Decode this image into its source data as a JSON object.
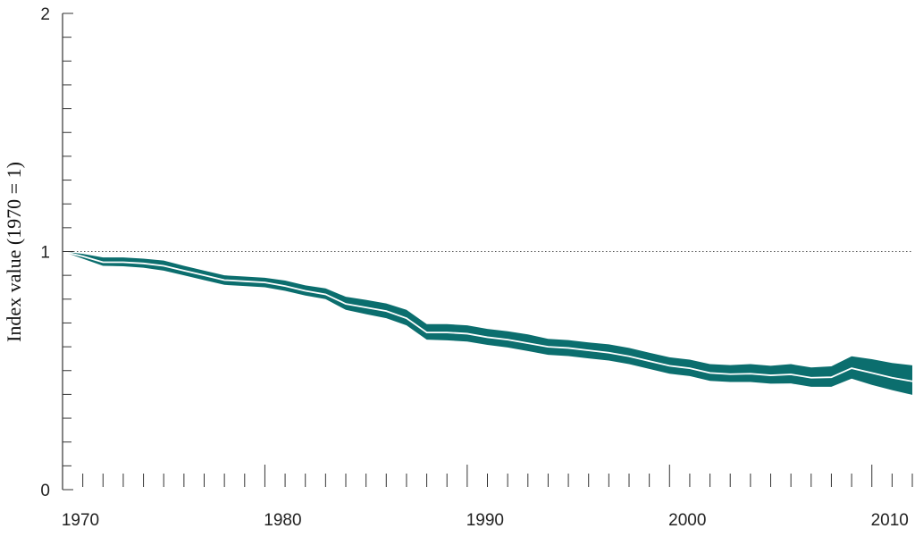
{
  "chart_data": {
    "type": "area",
    "title": "",
    "xlabel": "",
    "ylabel": "Index value (1970 = 1)",
    "xlim": [
      1970,
      2012
    ],
    "ylim": [
      0,
      2
    ],
    "x_ticks": [
      "1970",
      "1980",
      "1990",
      "2000",
      "2010"
    ],
    "y_ticks": [
      "0",
      "1",
      "2"
    ],
    "reference_line": 1,
    "grid": false,
    "colors": {
      "band": "#0b6e6e",
      "line": "#ffffff",
      "axis": "#333333",
      "reference": "#555555"
    },
    "x": [
      1970,
      1971,
      1972,
      1973,
      1974,
      1975,
      1976,
      1977,
      1978,
      1979,
      1980,
      1981,
      1982,
      1983,
      1984,
      1985,
      1986,
      1987,
      1988,
      1989,
      1990,
      1991,
      1992,
      1993,
      1994,
      1995,
      1996,
      1997,
      1998,
      1999,
      2000,
      2001,
      2002,
      2003,
      2004,
      2005,
      2006,
      2007,
      2008,
      2009,
      2010,
      2011,
      2012
    ],
    "series": [
      {
        "name": "",
        "kind": "line",
        "values": [
          1.0,
          0.98,
          0.955,
          0.955,
          0.95,
          0.94,
          0.92,
          0.9,
          0.88,
          0.875,
          0.87,
          0.855,
          0.835,
          0.82,
          0.78,
          0.765,
          0.75,
          0.72,
          0.66,
          0.66,
          0.655,
          0.64,
          0.63,
          0.615,
          0.6,
          0.595,
          0.585,
          0.575,
          0.56,
          0.54,
          0.52,
          0.51,
          0.49,
          0.485,
          0.487,
          0.48,
          0.484,
          0.47,
          0.472,
          0.51,
          0.49,
          0.47,
          0.455
        ]
      },
      {
        "name": "",
        "kind": "upper",
        "values": [
          1.0,
          0.99,
          0.975,
          0.975,
          0.97,
          0.962,
          0.94,
          0.92,
          0.9,
          0.895,
          0.89,
          0.878,
          0.858,
          0.845,
          0.81,
          0.797,
          0.782,
          0.755,
          0.695,
          0.695,
          0.69,
          0.675,
          0.665,
          0.652,
          0.633,
          0.628,
          0.618,
          0.61,
          0.595,
          0.575,
          0.556,
          0.546,
          0.527,
          0.523,
          0.527,
          0.52,
          0.527,
          0.513,
          0.518,
          0.56,
          0.548,
          0.532,
          0.522
        ]
      },
      {
        "name": "",
        "kind": "lower",
        "values": [
          1.0,
          0.97,
          0.94,
          0.938,
          0.932,
          0.92,
          0.9,
          0.88,
          0.86,
          0.855,
          0.85,
          0.835,
          0.815,
          0.8,
          0.755,
          0.737,
          0.72,
          0.69,
          0.63,
          0.627,
          0.622,
          0.608,
          0.597,
          0.582,
          0.566,
          0.561,
          0.551,
          0.542,
          0.527,
          0.507,
          0.487,
          0.477,
          0.457,
          0.452,
          0.452,
          0.445,
          0.446,
          0.432,
          0.432,
          0.466,
          0.44,
          0.418,
          0.398
        ]
      }
    ]
  }
}
